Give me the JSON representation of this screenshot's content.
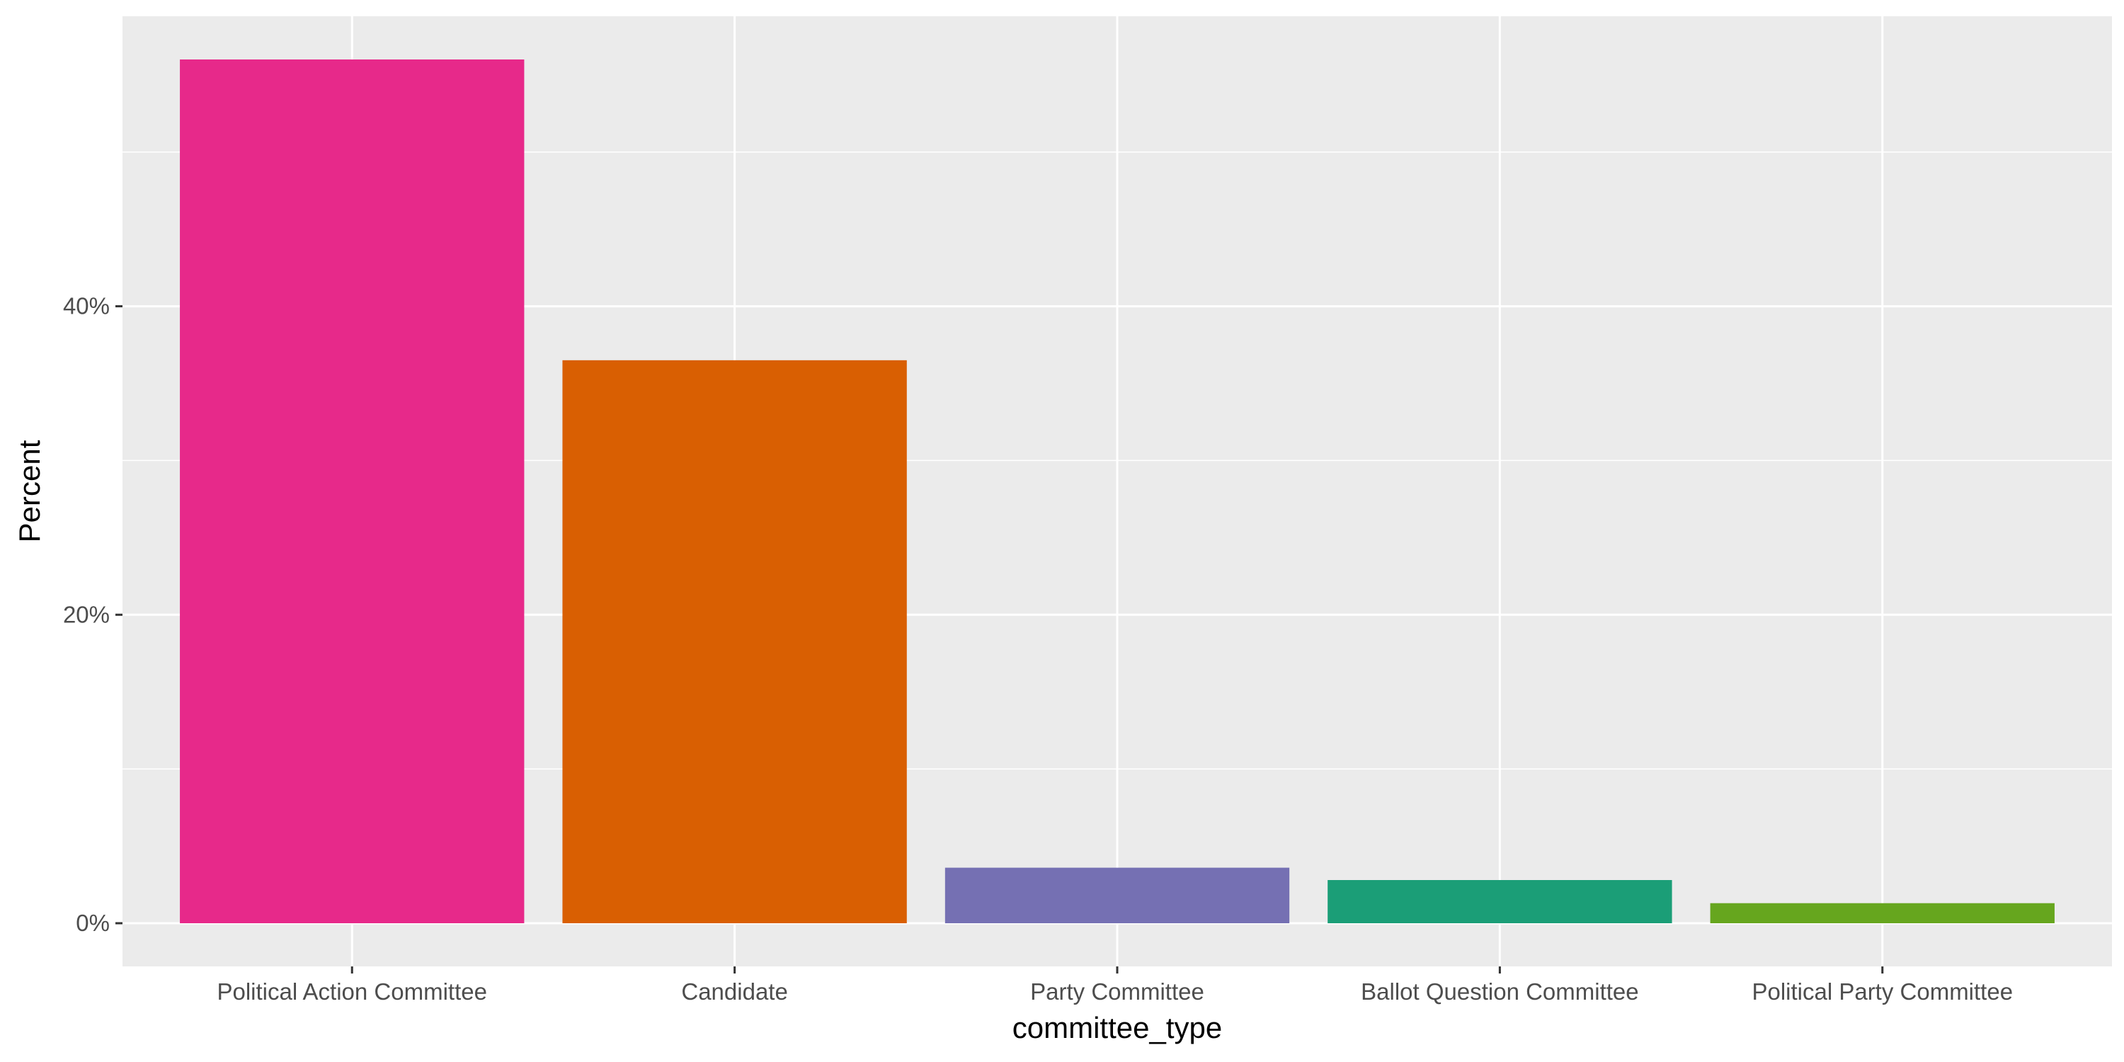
{
  "chart_data": {
    "type": "bar",
    "title": "",
    "xlabel": "committee_type",
    "ylabel": "Percent",
    "categories": [
      "Political Action Committee",
      "Candidate",
      "Party Committee",
      "Ballot Question Committee",
      "Political Party Committee"
    ],
    "values": [
      56.0,
      36.5,
      3.6,
      2.8,
      1.3
    ],
    "colors": [
      "#E7298A",
      "#D95F02",
      "#7570B3",
      "#1B9E77",
      "#66A61E"
    ],
    "y_ticks": [
      0,
      20,
      40
    ],
    "y_tick_labels": [
      "0%",
      "20%",
      "40%"
    ],
    "ylim": [
      -2.8,
      58.8
    ],
    "grid": true,
    "legend": "none",
    "panel_background": "#EBEBEB",
    "grid_color": "#FFFFFF"
  }
}
